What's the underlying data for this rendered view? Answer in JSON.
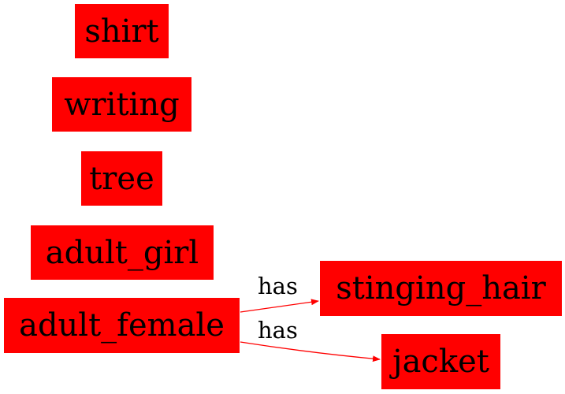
{
  "colors": {
    "node_fill": "#ff0000",
    "edge": "#ff0000",
    "text": "#000000",
    "background": "#ffffff"
  },
  "nodes": {
    "shirt": "shirt",
    "writing": "writing",
    "tree": "tree",
    "adult_girl": "adult_girl",
    "adult_female": "adult_female",
    "stinging_hair": "stinging_hair",
    "jacket": "jacket"
  },
  "edges": [
    {
      "from": "adult_female",
      "to": "stinging_hair",
      "label": "has"
    },
    {
      "from": "adult_female",
      "to": "jacket",
      "label": "has"
    }
  ]
}
